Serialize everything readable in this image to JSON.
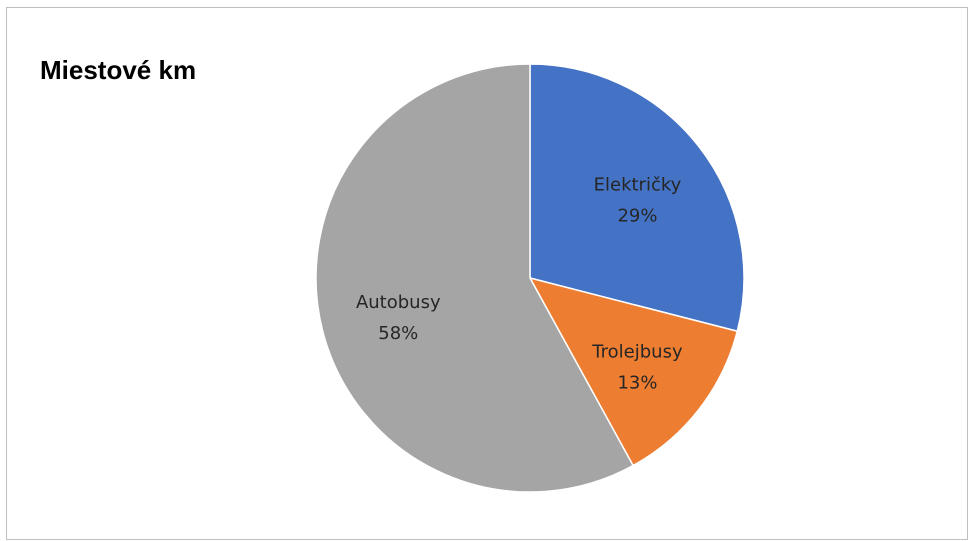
{
  "chart_data": {
    "type": "pie",
    "title": "Miestové km",
    "categories": [
      "Električky",
      "Trolejbusy",
      "Autobusy"
    ],
    "values": [
      29,
      13,
      58
    ],
    "labels": [
      "29%",
      "13%",
      "58%"
    ],
    "colors": [
      "#4472C4",
      "#ED7D31",
      "#A5A5A5"
    ],
    "label_color": "#262626",
    "start": "12 o'clock",
    "direction": "clockwise",
    "legend": "none"
  }
}
